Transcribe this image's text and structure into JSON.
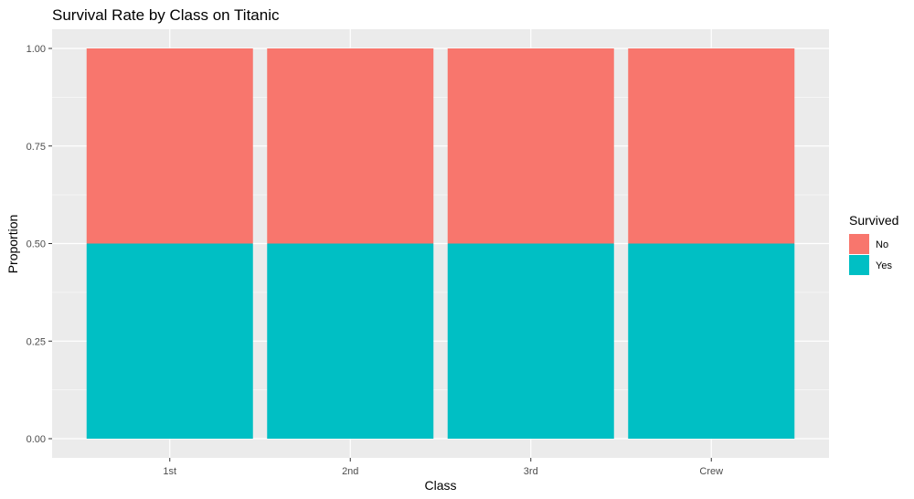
{
  "chart_data": {
    "type": "bar",
    "stacked": true,
    "title": "Survival Rate by Class on Titanic",
    "xlabel": "Class",
    "ylabel": "Proportion",
    "categories": [
      "1st",
      "2nd",
      "3rd",
      "Crew"
    ],
    "series": [
      {
        "name": "Yes",
        "values": [
          0.5,
          0.5,
          0.5,
          0.5
        ],
        "color": "#00BFC4"
      },
      {
        "name": "No",
        "values": [
          0.5,
          0.5,
          0.5,
          0.5
        ],
        "color": "#F8766D"
      }
    ],
    "ylim": [
      0,
      1
    ],
    "yticks": [
      "0.00",
      "0.25",
      "0.50",
      "0.75",
      "1.00"
    ],
    "grid": true,
    "panel_background": "#EBEBEB",
    "legend": {
      "title": "Survived",
      "placement": "right",
      "items": [
        {
          "label": "No",
          "color": "#F8766D"
        },
        {
          "label": "Yes",
          "color": "#00BFC4"
        }
      ]
    }
  }
}
